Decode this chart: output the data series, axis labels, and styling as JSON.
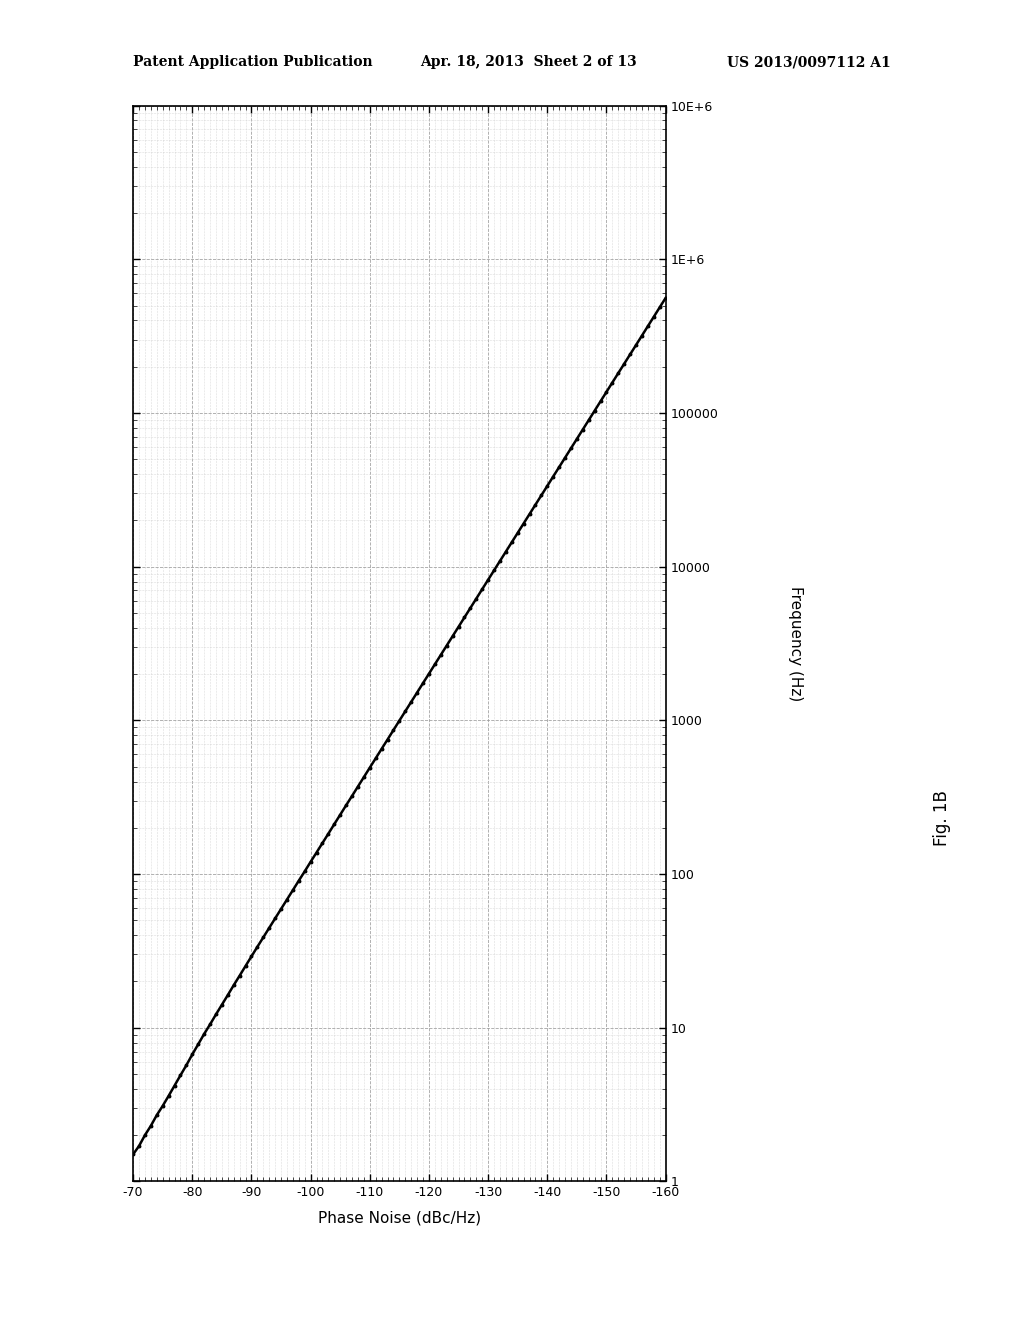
{
  "header_left": "Patent Application Publication",
  "header_mid": "Apr. 18, 2013  Sheet 2 of 13",
  "header_right": "US 2013/0097112 A1",
  "fig_label": "Fig. 1B",
  "xlabel": "Phase Noise (dBc/Hz)",
  "ylabel": "Frequency (Hz)",
  "xlim": [
    -70,
    -160
  ],
  "ylim_log": [
    1,
    10000000
  ],
  "xticks": [
    -70,
    -80,
    -90,
    -100,
    -110,
    -120,
    -130,
    -140,
    -150,
    -160
  ],
  "xtick_labels": [
    "-70",
    "-80",
    "-90",
    "-100",
    "-110",
    "-120",
    "-130",
    "-140",
    "-150",
    "-160"
  ],
  "ytick_labels": [
    "1",
    "10",
    "100",
    "1000",
    "10000",
    "100000",
    "1E+6",
    "10E+6"
  ],
  "ytick_values": [
    1,
    10,
    100,
    1000,
    10000,
    100000,
    1000000,
    10000000
  ],
  "background_color": "#ffffff",
  "grid_major_color": "#999999",
  "grid_minor_color": "#cccccc",
  "line_color": "#000000",
  "curve_phase_noise": [
    -70,
    -71,
    -72,
    -73,
    -74,
    -75,
    -76,
    -77,
    -78,
    -79,
    -80,
    -81,
    -82,
    -83,
    -84,
    -85,
    -86,
    -87,
    -88,
    -89,
    -90,
    -91,
    -92,
    -93,
    -94,
    -95,
    -96,
    -97,
    -98,
    -99,
    -100,
    -101,
    -102,
    -103,
    -104,
    -105,
    -106,
    -107,
    -108,
    -109,
    -110,
    -111,
    -112,
    -113,
    -114,
    -115,
    -116,
    -117,
    -118,
    -119,
    -120,
    -121,
    -122,
    -123,
    -124,
    -125,
    -126,
    -127,
    -128,
    -129,
    -130,
    -131,
    -132,
    -133,
    -134,
    -135,
    -136,
    -137,
    -138,
    -139,
    -140,
    -141,
    -142,
    -143,
    -144,
    -145,
    -146,
    -147,
    -148,
    -149,
    -150,
    -151,
    -152,
    -153,
    -154,
    -155,
    -156,
    -157,
    -158,
    -159,
    -160
  ],
  "curve_freq": [
    1.5,
    1.7,
    2.0,
    2.3,
    2.7,
    3.1,
    3.6,
    4.2,
    4.9,
    5.7,
    6.7,
    7.8,
    9.1,
    10.5,
    12.2,
    14.1,
    16.3,
    18.9,
    21.8,
    25.2,
    29.1,
    33.6,
    38.7,
    44.6,
    51.4,
    59.2,
    68.2,
    78.5,
    90.5,
    104,
    120,
    138,
    159,
    183,
    211,
    243,
    280,
    322,
    371,
    427,
    492,
    566,
    652,
    750,
    864,
    995,
    1145,
    1318,
    1517,
    1746,
    2010,
    2314,
    2663,
    3065,
    3527,
    4059,
    4673,
    5380,
    6193,
    7131,
    8210,
    9450,
    10878,
    12519,
    14409,
    16584,
    19087,
    21972,
    25291,
    29106,
    33500,
    38579,
    44391,
    51110,
    58830,
    67740,
    77988,
    89751,
    103342,
    118988,
    136984,
    157748,
    181557,
    208914,
    240381,
    276628,
    318480,
    366880,
    422250,
    486325,
    560000
  ]
}
